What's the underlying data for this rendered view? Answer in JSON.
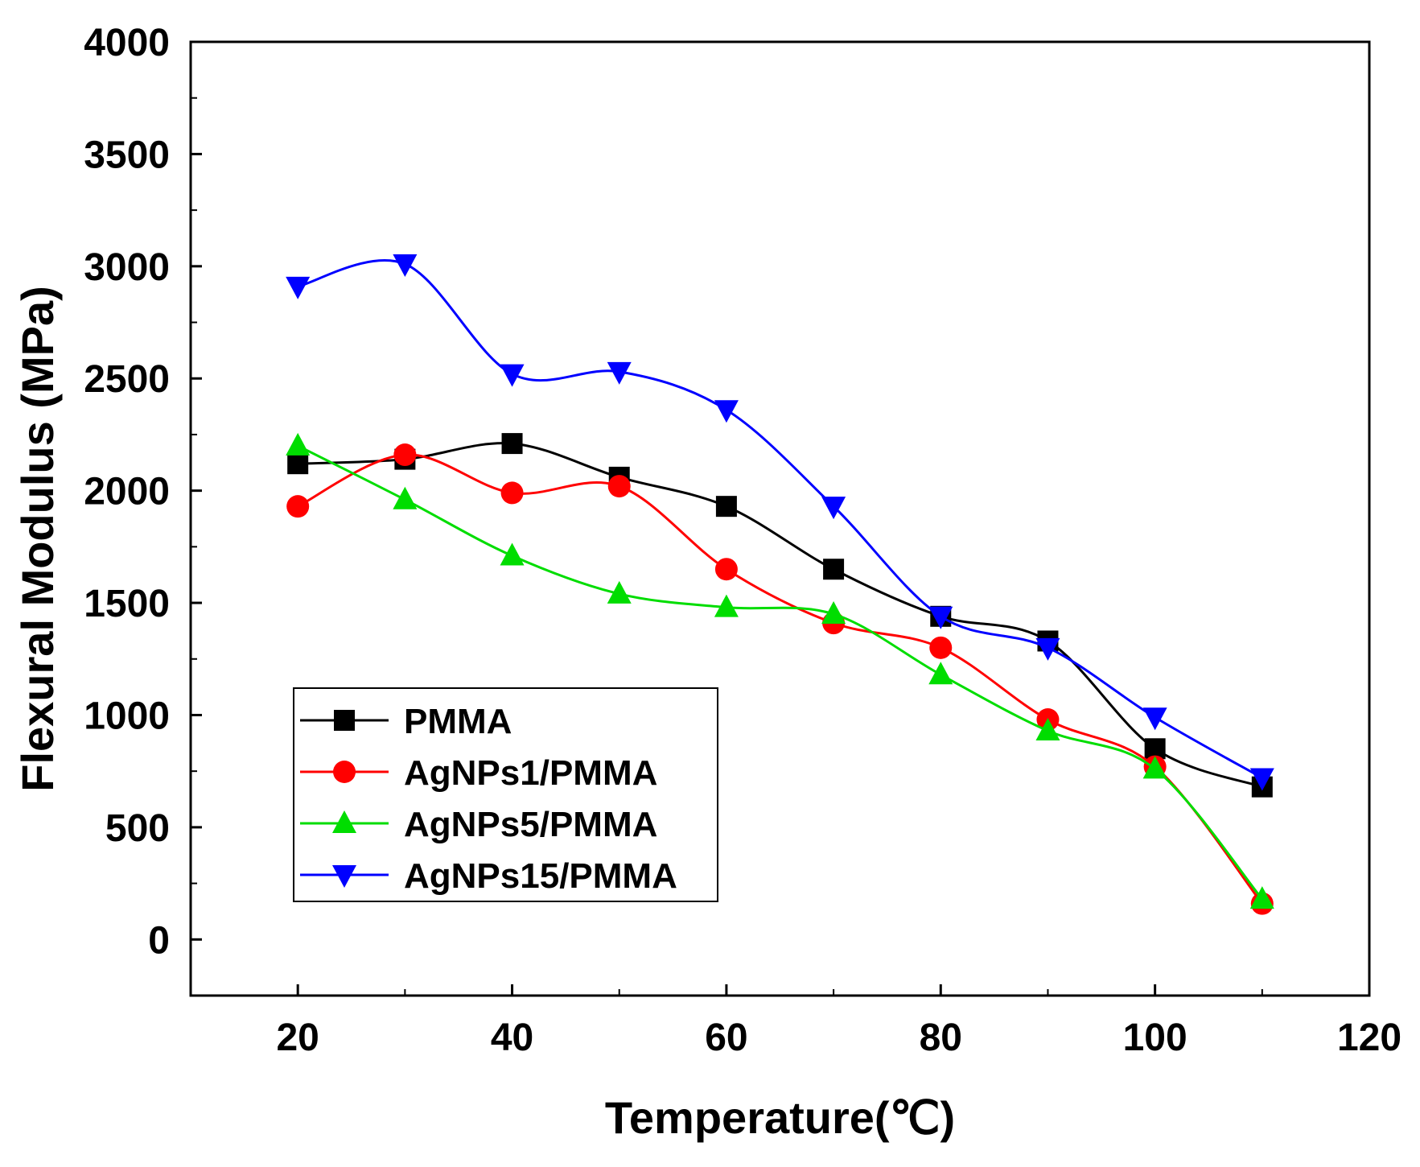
{
  "chart_data": {
    "type": "line",
    "title": "",
    "xlabel": "Temperature(℃)",
    "ylabel": "Flexural Modulus (MPa)",
    "xlim": [
      10,
      120
    ],
    "ylim": [
      -250,
      4000
    ],
    "xticks": [
      20,
      40,
      60,
      80,
      100,
      120
    ],
    "yticks": [
      0,
      500,
      1000,
      1500,
      2000,
      2500,
      3000,
      3500,
      4000
    ],
    "legend_position": "bottom-left",
    "x": [
      20,
      30,
      40,
      50,
      60,
      70,
      80,
      90,
      100,
      110
    ],
    "series": [
      {
        "name": "PMMA",
        "marker": "square",
        "color": "#000000",
        "values": [
          2120,
          2140,
          2210,
          2060,
          1930,
          1650,
          1440,
          1330,
          850,
          680
        ]
      },
      {
        "name": "AgNPs1/PMMA",
        "marker": "circle",
        "color": "#ff0000",
        "values": [
          1930,
          2160,
          1990,
          2020,
          1650,
          1410,
          1300,
          980,
          770,
          160
        ]
      },
      {
        "name": "AgNPs5/PMMA",
        "marker": "triangle-up",
        "color": "#00dd00",
        "values": [
          2200,
          1960,
          1710,
          1540,
          1480,
          1450,
          1180,
          930,
          760,
          180
        ]
      },
      {
        "name": "AgNPs15/PMMA",
        "marker": "triangle-down",
        "color": "#0000ff",
        "values": [
          2910,
          3010,
          2520,
          2530,
          2360,
          1930,
          1440,
          1300,
          990,
          720
        ]
      }
    ]
  }
}
